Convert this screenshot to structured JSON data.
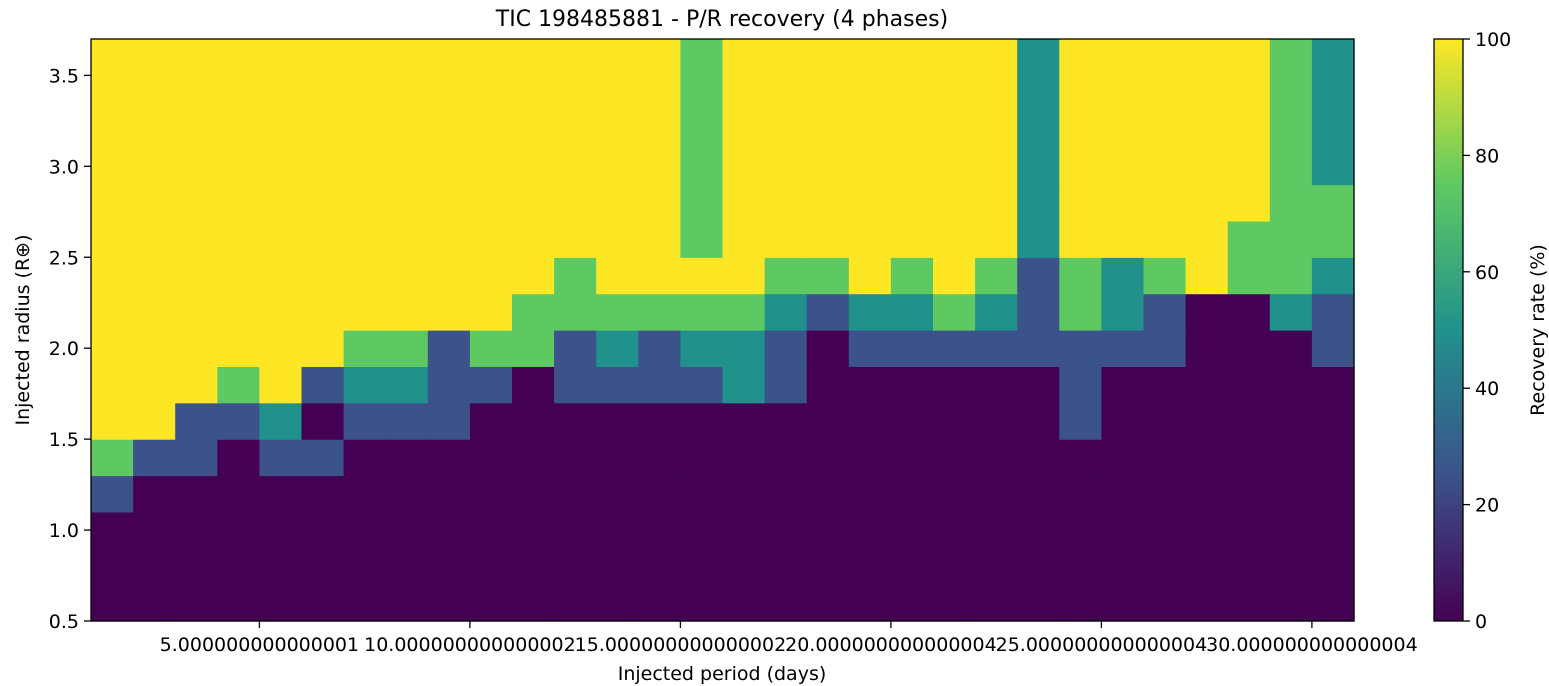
{
  "chart_data": {
    "type": "heatmap",
    "title": "TIC 198485881 - P/R recovery (4 phases)",
    "xlabel": "Injected period (days)",
    "ylabel": "Injected radius (R⊕)",
    "colorbar_label": "Recovery rate (%)",
    "colorscale": "viridis",
    "xlim": [
      1.0,
      31.0
    ],
    "ylim": [
      0.5,
      3.7
    ],
    "clim": [
      0,
      100
    ],
    "x_cell_edges": [
      1.0,
      2.0,
      3.0,
      4.0,
      5.0,
      6.0,
      7.0,
      8.0,
      9.0,
      10.0,
      11.0,
      12.0,
      13.0,
      14.0,
      15.0,
      16.0,
      17.0,
      18.0,
      19.0,
      20.0,
      21.0,
      22.0,
      23.0,
      24.0,
      25.0,
      26.0,
      27.0,
      28.0,
      29.0,
      30.0,
      31.0
    ],
    "y_cell_edges": [
      0.5,
      1.1,
      1.3,
      1.5,
      1.7,
      1.9,
      2.1,
      2.3,
      2.5,
      2.7,
      2.9,
      3.7
    ],
    "x_ticks": [
      5.0,
      10.0,
      15.0,
      20.0,
      25.0,
      30.0
    ],
    "x_tick_labels": [
      "5.000000000000001",
      "10.000000000000002",
      "15.000000000000002",
      "20.000000000000004",
      "25.000000000000004",
      "30.000000000000004"
    ],
    "y_ticks": [
      0.5,
      1.0,
      1.5,
      2.0,
      2.5,
      3.0,
      3.5
    ],
    "y_tick_labels": [
      "0.5",
      "1.0",
      "1.5",
      "2.0",
      "2.5",
      "3.0",
      "3.5"
    ],
    "colorbar_ticks": [
      0,
      20,
      40,
      60,
      80,
      100
    ],
    "colorbar_tick_labels": [
      "0",
      "20",
      "40",
      "60",
      "80",
      "100"
    ],
    "values": [
      [
        0,
        0,
        0,
        0,
        0,
        0,
        0,
        0,
        0,
        0,
        0,
        0,
        0,
        0,
        0,
        0,
        0,
        0,
        0,
        0,
        0,
        0,
        0,
        0,
        0,
        0,
        0,
        0,
        0,
        0
      ],
      [
        25,
        0,
        0,
        0,
        0,
        0,
        0,
        0,
        0,
        0,
        0,
        0,
        0,
        0,
        0,
        0,
        0,
        0,
        0,
        0,
        0,
        0,
        0,
        0,
        0,
        0,
        0,
        0,
        0,
        0
      ],
      [
        75,
        25,
        25,
        0,
        25,
        25,
        0,
        0,
        0,
        0,
        0,
        0,
        0,
        0,
        0,
        0,
        0,
        0,
        0,
        0,
        0,
        0,
        0,
        0,
        0,
        0,
        0,
        0,
        0,
        0
      ],
      [
        100,
        100,
        25,
        25,
        50,
        0,
        25,
        25,
        25,
        0,
        0,
        0,
        0,
        0,
        0,
        0,
        0,
        0,
        0,
        0,
        0,
        0,
        0,
        25,
        0,
        0,
        0,
        0,
        0,
        0
      ],
      [
        100,
        100,
        100,
        75,
        100,
        25,
        50,
        50,
        25,
        25,
        0,
        25,
        25,
        25,
        25,
        50,
        25,
        0,
        0,
        0,
        0,
        0,
        0,
        25,
        0,
        0,
        0,
        0,
        0,
        0
      ],
      [
        100,
        100,
        100,
        100,
        100,
        100,
        75,
        75,
        25,
        75,
        75,
        25,
        50,
        25,
        50,
        50,
        25,
        0,
        25,
        25,
        25,
        25,
        25,
        25,
        25,
        25,
        0,
        0,
        0,
        25
      ],
      [
        100,
        100,
        100,
        100,
        100,
        100,
        100,
        100,
        100,
        100,
        75,
        75,
        75,
        75,
        75,
        75,
        50,
        25,
        50,
        50,
        75,
        50,
        25,
        75,
        50,
        25,
        0,
        0,
        50,
        25
      ],
      [
        100,
        100,
        100,
        100,
        100,
        100,
        100,
        100,
        100,
        100,
        100,
        75,
        100,
        100,
        100,
        100,
        75,
        75,
        100,
        75,
        100,
        75,
        25,
        75,
        50,
        75,
        100,
        75,
        75,
        50
      ],
      [
        100,
        100,
        100,
        100,
        100,
        100,
        100,
        100,
        100,
        100,
        100,
        100,
        100,
        100,
        75,
        100,
        100,
        100,
        100,
        100,
        100,
        100,
        50,
        100,
        100,
        100,
        100,
        75,
        75,
        75
      ],
      [
        100,
        100,
        100,
        100,
        100,
        100,
        100,
        100,
        100,
        100,
        100,
        100,
        100,
        100,
        75,
        100,
        100,
        100,
        100,
        100,
        100,
        100,
        50,
        100,
        100,
        100,
        100,
        100,
        75,
        75
      ],
      [
        100,
        100,
        100,
        100,
        100,
        100,
        100,
        100,
        100,
        100,
        100,
        100,
        100,
        100,
        75,
        100,
        100,
        100,
        100,
        100,
        100,
        100,
        50,
        100,
        100,
        100,
        100,
        100,
        75,
        50
      ]
    ]
  }
}
